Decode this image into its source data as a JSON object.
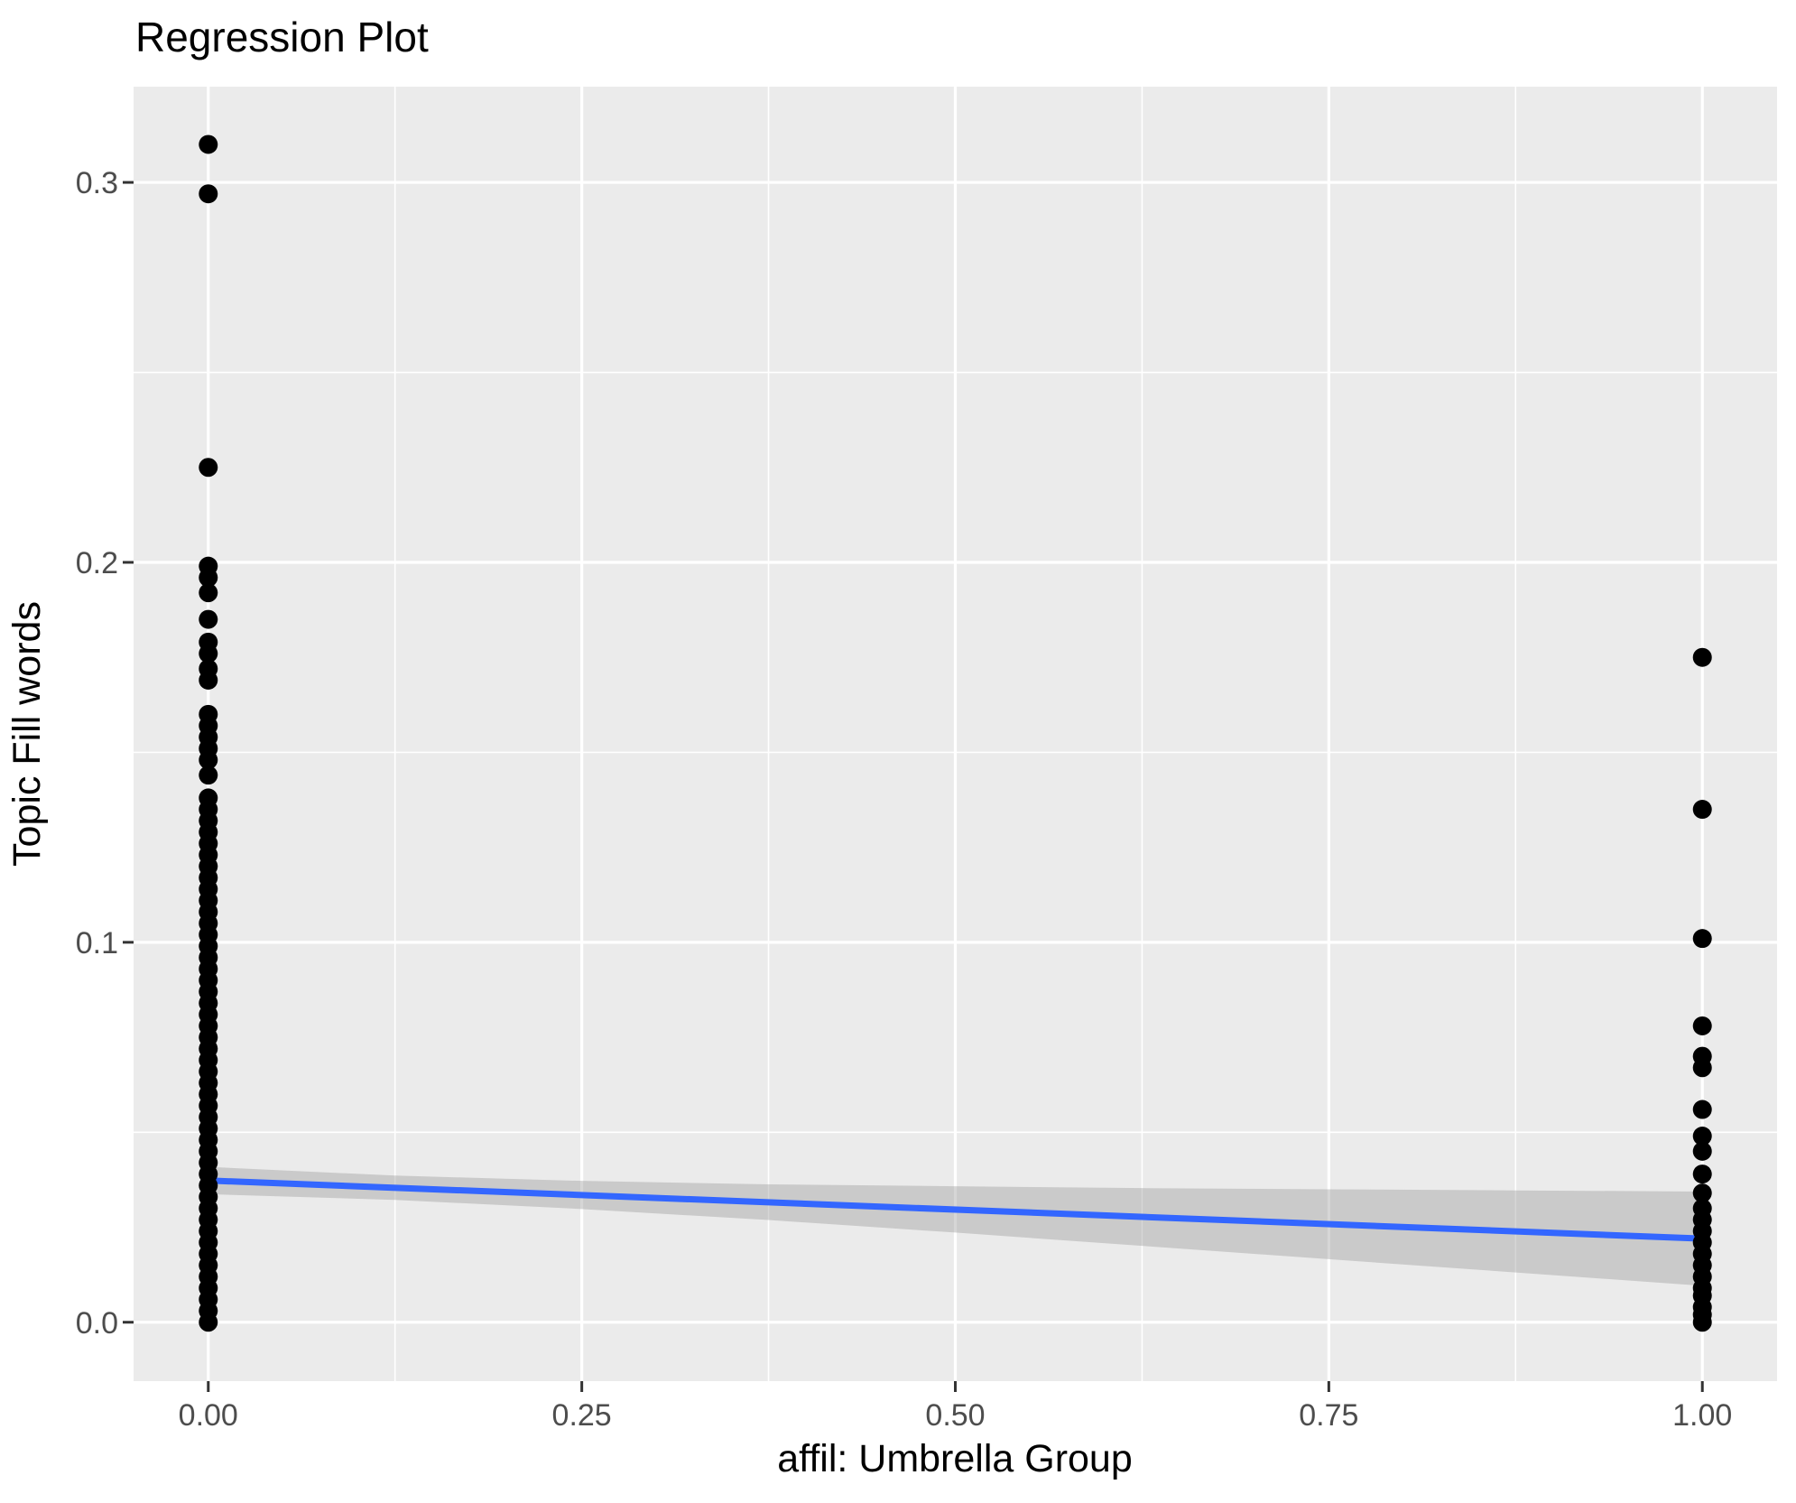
{
  "title": "Regression Plot",
  "chart_data": {
    "type": "scatter",
    "title": "Regression Plot",
    "xlabel": "affil: Umbrella Group",
    "ylabel": "Topic Fill words",
    "xlim": [
      -0.05,
      1.05
    ],
    "ylim": [
      -0.0155,
      0.3252
    ],
    "grid": "on",
    "legend": "none",
    "x_ticks": {
      "values": [
        0,
        0.25,
        0.5,
        0.75,
        1
      ],
      "labels": [
        "0.00",
        "0.25",
        "0.50",
        "0.75",
        "1.00"
      ],
      "minor": [
        0.125,
        0.375,
        0.625,
        0.875
      ]
    },
    "y_ticks": {
      "values": [
        0,
        0.1,
        0.2,
        0.3
      ],
      "labels": [
        "0.0",
        "0.1",
        "0.2",
        "0.3"
      ],
      "minor": [
        0.05,
        0.15,
        0.25
      ]
    },
    "series": [
      {
        "name": "observations at affil = 0",
        "x": 0,
        "y_values": [
          0.31,
          0.297,
          0.225,
          0.199,
          0.196,
          0.192,
          0.185,
          0.179,
          0.176,
          0.172,
          0.169,
          0.16,
          0.157,
          0.154,
          0.151,
          0.148,
          0.144,
          0.138,
          0.135,
          0.132,
          0.129,
          0.126,
          0.123,
          0.12,
          0.117,
          0.114,
          0.111,
          0.108,
          0.105,
          0.102,
          0.099,
          0.096,
          0.093,
          0.09,
          0.087,
          0.084,
          0.081,
          0.078,
          0.075,
          0.072,
          0.069,
          0.066,
          0.063,
          0.06,
          0.057,
          0.054,
          0.051,
          0.048,
          0.045,
          0.042,
          0.039,
          0.036,
          0.033,
          0.03,
          0.027,
          0.024,
          0.021,
          0.018,
          0.015,
          0.012,
          0.009,
          0.006,
          0.003,
          0.0
        ]
      },
      {
        "name": "observations at affil = 1",
        "x": 1,
        "y_values": [
          0.175,
          0.135,
          0.101,
          0.078,
          0.07,
          0.067,
          0.056,
          0.049,
          0.045,
          0.039,
          0.034,
          0.03,
          0.027,
          0.024,
          0.021,
          0.018,
          0.015,
          0.012,
          0.009,
          0.007,
          0.004,
          0.002,
          0.0
        ]
      }
    ],
    "regression_line": {
      "x": [
        0,
        1
      ],
      "y": [
        0.0373,
        0.022
      ],
      "color": "#3366FF"
    },
    "confidence_band": {
      "x": [
        0,
        0.125,
        0.25,
        0.375,
        0.5,
        0.625,
        0.75,
        0.875,
        1
      ],
      "upper": [
        0.0409,
        0.0386,
        0.0372,
        0.0363,
        0.0358,
        0.0353,
        0.035,
        0.0347,
        0.0344
      ],
      "lower": [
        0.0337,
        0.0322,
        0.0298,
        0.0269,
        0.0236,
        0.0201,
        0.0166,
        0.0131,
        0.0096
      ],
      "fill": "#999999",
      "opacity": 0.4
    },
    "style": {
      "panel_bg": "#EBEBEB",
      "grid_color": "#FFFFFF",
      "axis_text_color": "#4D4D4D",
      "tick_mark_color": "#333333",
      "title_color": "#000000",
      "axis_title_color": "#000000",
      "point_color": "#000000"
    }
  }
}
